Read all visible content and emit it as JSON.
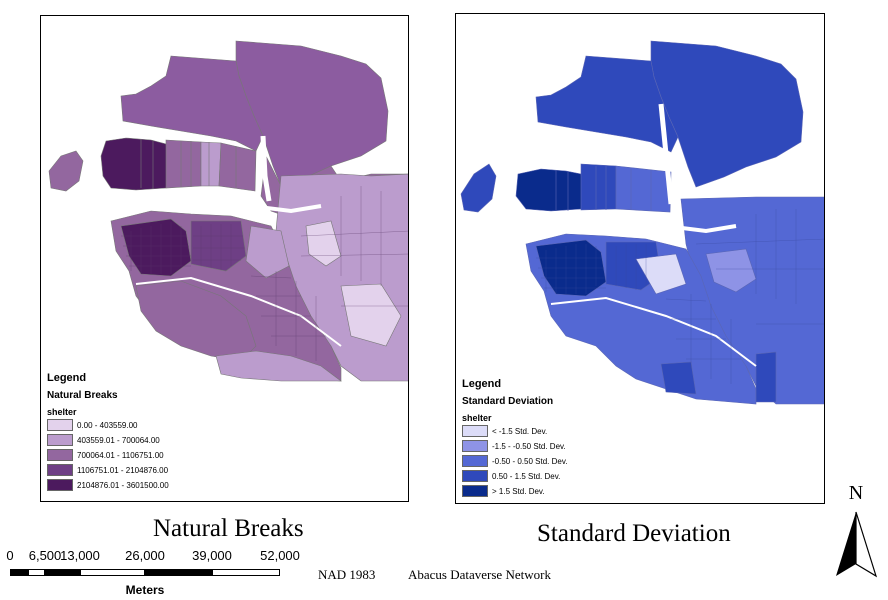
{
  "maps": {
    "left": {
      "title": "Natural Breaks",
      "legend": {
        "title": "Legend",
        "subtitle": "Natural Breaks",
        "field": "shelter",
        "classes": [
          {
            "label": "0.00 - 403559.00",
            "color": "#e3d2ec"
          },
          {
            "label": "403559.01 - 700064.00",
            "color": "#bb9ccd"
          },
          {
            "label": "700064.01 - 1106751.00",
            "color": "#93679f"
          },
          {
            "label": "1106751.01 - 2104876.00",
            "color": "#6e3f85"
          },
          {
            "label": "2104876.01 - 3601500.00",
            "color": "#4c1a5e"
          }
        ]
      }
    },
    "right": {
      "title": "Standard Deviation",
      "legend": {
        "title": "Legend",
        "subtitle": "Standard Deviation",
        "field": "shelter",
        "classes": [
          {
            "label": "< -1.5 Std. Dev.",
            "color": "#dcdcf8"
          },
          {
            "label": "-1.5 - -0.50 Std. Dev.",
            "color": "#8e93e6"
          },
          {
            "label": "-0.50 - 0.50 Std. Dev.",
            "color": "#5468d4"
          },
          {
            "label": "0.50 - 1.5 Std. Dev.",
            "color": "#2f49bb"
          },
          {
            "label": "> 1.5 Std. Dev.",
            "color": "#0a2b8c"
          }
        ]
      }
    }
  },
  "scalebar": {
    "ticks": [
      "0",
      "6,500",
      "13,000",
      "26,000",
      "39,000",
      "52,000"
    ],
    "unit": "Meters"
  },
  "credits": {
    "datum": "NAD 1983",
    "source": "Abacus Dataverse Network"
  },
  "north_arrow": {
    "letter": "N",
    "icon": "north-arrow-icon"
  }
}
